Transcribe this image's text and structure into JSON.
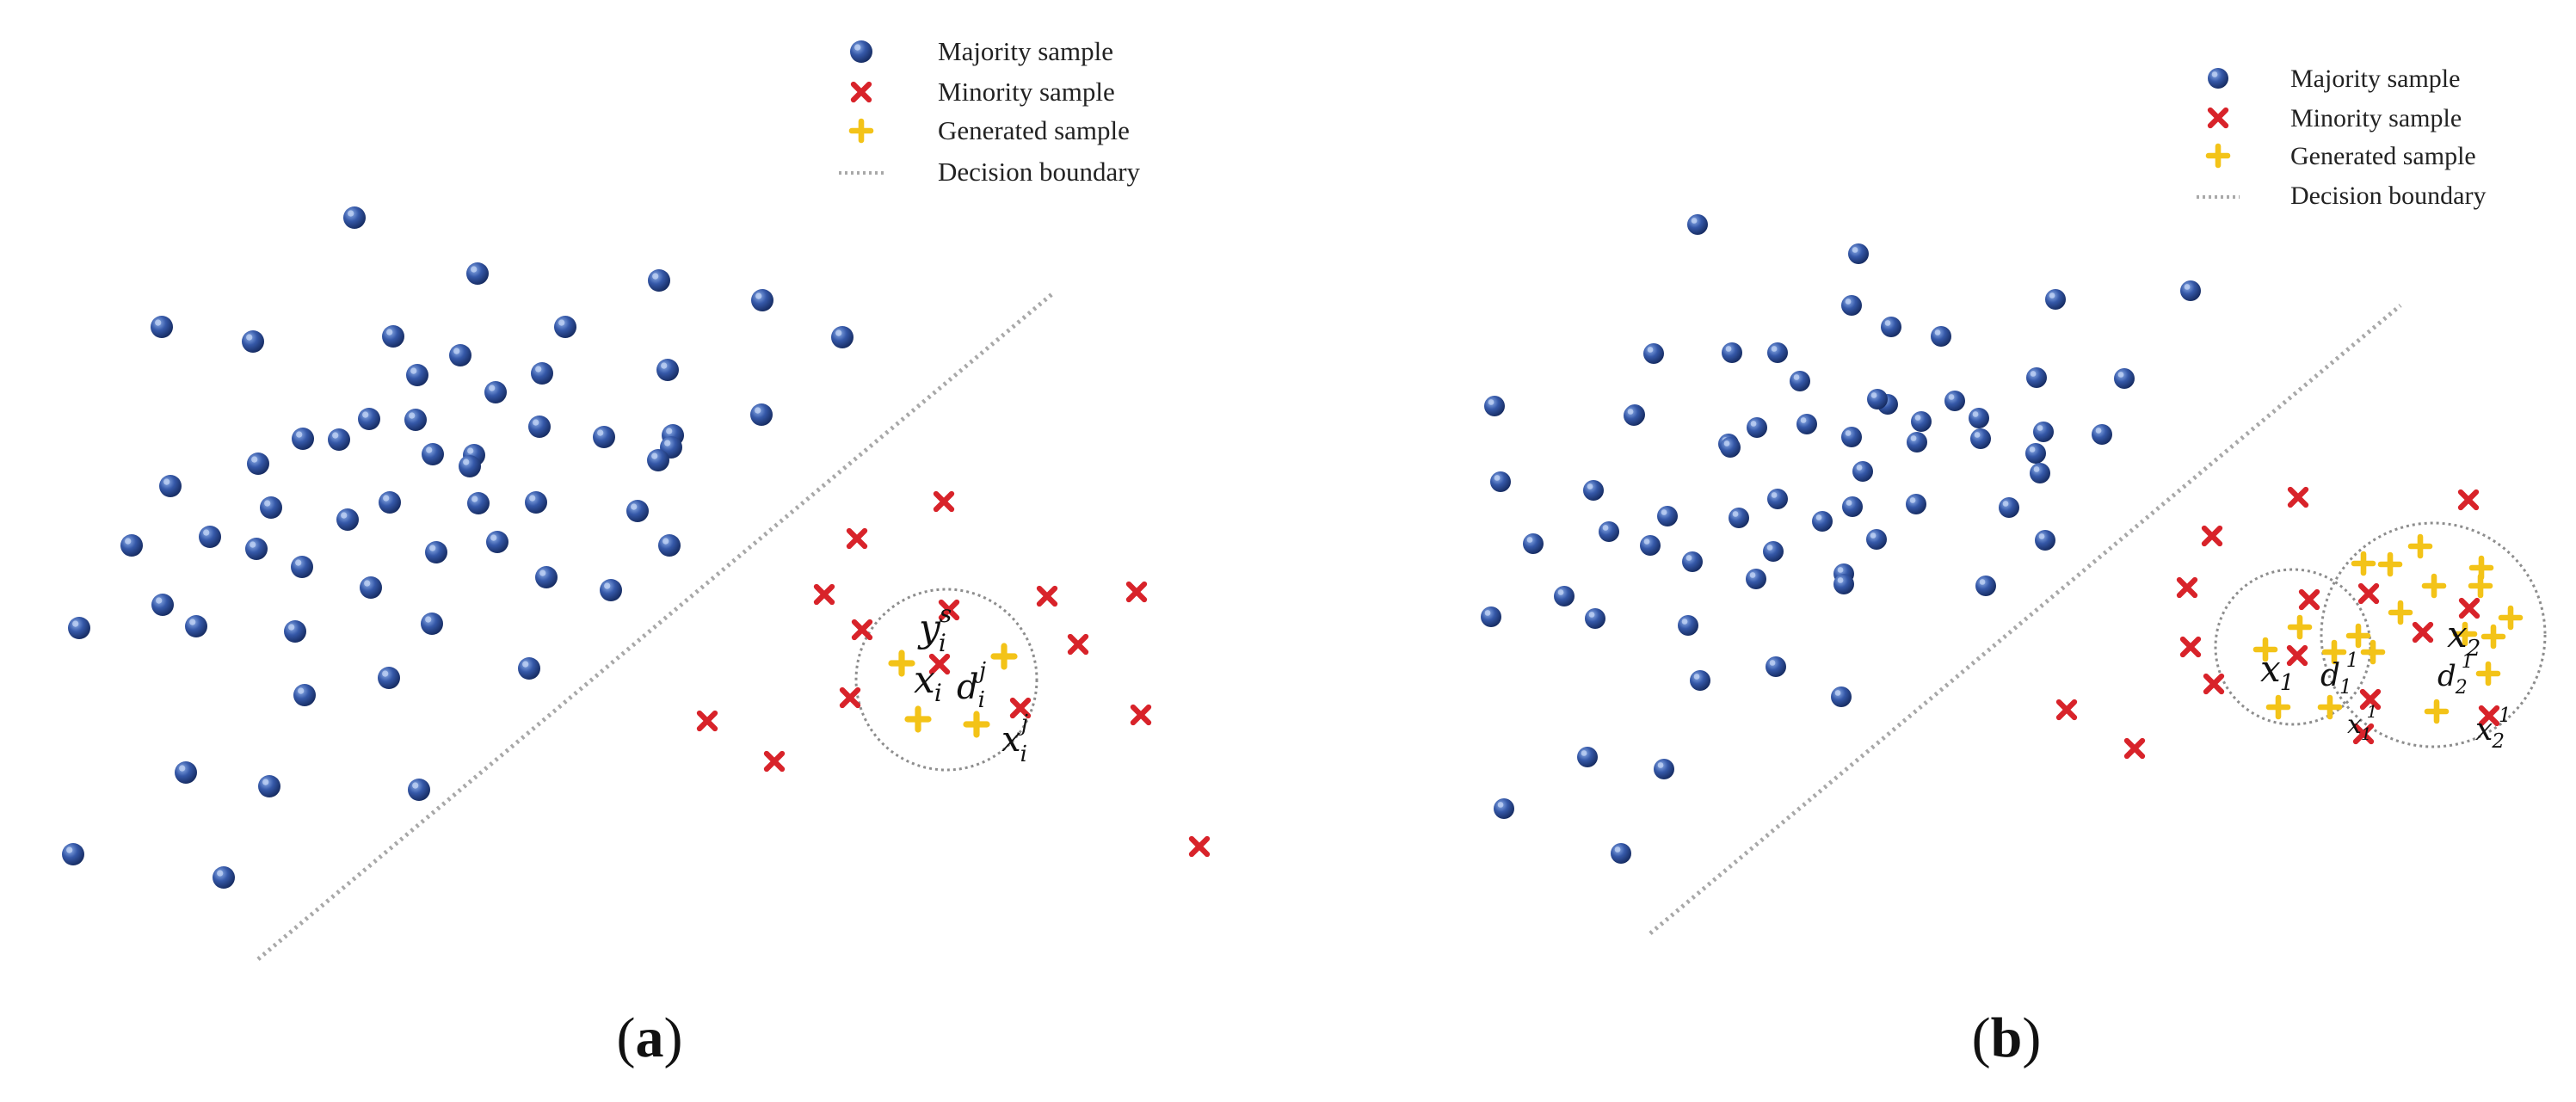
{
  "legend": {
    "majority": "Majority sample",
    "minority": "Minority sample",
    "generated": "Generated sample",
    "boundary": "Decision boundary"
  },
  "colors": {
    "majority": "#2c4f9e",
    "majority_highlight": "#7f9fdc",
    "minority": "#d8232a",
    "generated": "#f3c318",
    "boundary": "#a8a8a8",
    "neighborhood": "#8d8d8d"
  },
  "panel_a": {
    "caption_open": "(",
    "caption_letter": "a",
    "caption_close": ")",
    "labels": {
      "y_base": "y",
      "y_sub": "i",
      "y_sup": "s",
      "x_base": "x",
      "x_sub": "i",
      "d_base": "d",
      "d_sub": "i",
      "d_sup": "j",
      "xj_base": "x",
      "xj_sub": "i",
      "xj_sup": "j"
    }
  },
  "panel_b": {
    "caption_open": "(",
    "caption_letter": "b",
    "caption_close": ")",
    "labels": {
      "x1_base": "x",
      "x1_sub": "1",
      "d1_base": "d",
      "d1_sub": "1",
      "d1_sup": "1",
      "x11_base": "x",
      "x11_sub": "1",
      "x11_sup": "1",
      "x2_base": "x",
      "x2_sub": "2",
      "d2_base": "d",
      "d2_sub": "2",
      "d2_sup": "1",
      "x21_base": "x",
      "x21_sub": "2",
      "x21_sup": "1"
    }
  }
}
